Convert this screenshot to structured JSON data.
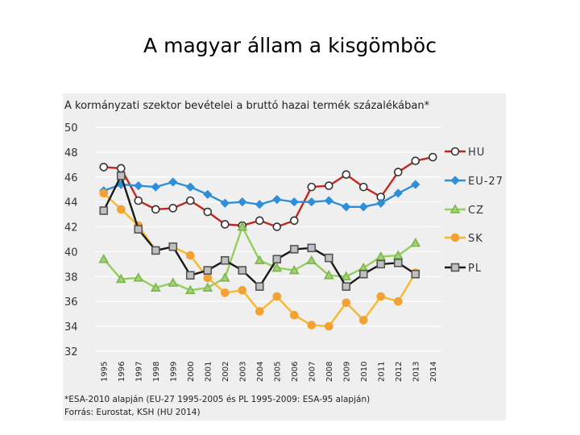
{
  "slide": {
    "title": "A magyar állam a kisgömböc"
  },
  "chart_data": {
    "type": "line",
    "title": "A kormányzati szektor bevételei a bruttó hazai termék százalékában*",
    "xlabel": "",
    "ylabel": "",
    "ylim": [
      32,
      50
    ],
    "yticks": [
      32,
      34,
      36,
      38,
      40,
      42,
      44,
      46,
      48,
      50
    ],
    "grid": true,
    "legend_position": "right",
    "categories": [
      "1995",
      "1996",
      "1997",
      "1998",
      "1999",
      "2000",
      "2001",
      "2002",
      "2003",
      "2004",
      "2005",
      "2006",
      "2007",
      "2008",
      "2009",
      "2010",
      "2011",
      "2012",
      "2013",
      "2014"
    ],
    "series": [
      {
        "name": "HU",
        "color": "#c0281e",
        "marker": "circle",
        "marker_fill": "#ffffff",
        "marker_stroke": "#333333",
        "values": [
          46.8,
          46.7,
          44.1,
          43.4,
          43.5,
          44.1,
          43.2,
          42.2,
          42.1,
          42.5,
          42.0,
          42.5,
          45.2,
          45.3,
          46.2,
          45.2,
          44.4,
          46.4,
          47.3,
          47.6
        ]
      },
      {
        "name": "EU-27",
        "color": "#2e8fd8",
        "marker": "diamond",
        "marker_fill": "#2e8fd8",
        "marker_stroke": "#2e8fd8",
        "values": [
          44.9,
          45.4,
          45.3,
          45.2,
          45.6,
          45.2,
          44.6,
          43.9,
          44.0,
          43.8,
          44.2,
          44.0,
          44.0,
          44.1,
          43.6,
          43.6,
          43.9,
          44.7,
          45.4,
          null
        ]
      },
      {
        "name": "CZ",
        "color": "#92cf5b",
        "marker": "triangle",
        "marker_fill": "#9fd273",
        "marker_stroke": "#7fb44c",
        "values": [
          39.4,
          37.8,
          37.9,
          37.1,
          37.5,
          36.9,
          37.1,
          37.9,
          42.0,
          39.3,
          38.7,
          38.5,
          39.3,
          38.1,
          38.0,
          38.7,
          39.6,
          39.7,
          40.7,
          null
        ]
      },
      {
        "name": "SK",
        "color": "#f5b92a",
        "marker": "circle",
        "marker_fill": "#f2a133",
        "marker_stroke": "#f2a133",
        "values": [
          44.7,
          43.4,
          42.1,
          40.1,
          40.4,
          39.7,
          37.9,
          36.7,
          36.9,
          35.2,
          36.4,
          34.9,
          34.1,
          34.0,
          35.9,
          34.5,
          36.4,
          36.0,
          38.3,
          null
        ]
      },
      {
        "name": "PL",
        "color": "#1a1a1a",
        "marker": "square",
        "marker_fill": "#c0c0c0",
        "marker_stroke": "#555555",
        "values": [
          43.3,
          46.1,
          41.8,
          40.1,
          40.4,
          38.1,
          38.5,
          39.3,
          38.5,
          37.2,
          39.4,
          40.2,
          40.3,
          39.5,
          37.2,
          38.2,
          39.0,
          39.1,
          38.2,
          null
        ]
      }
    ],
    "footnotes": [
      "*ESA-2010 alapján (EU-27 1995-2005 és PL 1995-2009: ESA-95 alapján)",
      "Forrás: Eurostat, KSH (HU 2014)"
    ]
  }
}
